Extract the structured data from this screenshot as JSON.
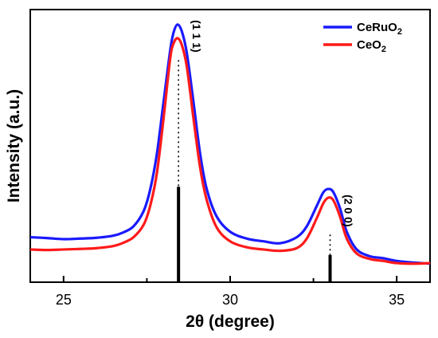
{
  "chart_data": {
    "type": "line",
    "xlabel": "2θ (degree)",
    "ylabel": "Intensity (a.u.)",
    "xlim": [
      24,
      36
    ],
    "ylim": [
      0,
      1
    ],
    "xticks": [
      25,
      30,
      35
    ],
    "xtick_labels": [
      "25",
      "30",
      "35"
    ],
    "legend_position": "top-right",
    "series": [
      {
        "name": "CeRuO2",
        "label_main": "CeRuO",
        "label_sub": "2",
        "color": "#1a1aff",
        "x": [
          24.0,
          24.5,
          25.0,
          25.5,
          26.0,
          26.5,
          26.8,
          27.1,
          27.4,
          27.6,
          27.8,
          28.0,
          28.2,
          28.3,
          28.42,
          28.55,
          28.7,
          28.9,
          29.1,
          29.3,
          29.6,
          30.0,
          30.5,
          31.0,
          31.5,
          32.0,
          32.3,
          32.6,
          32.8,
          32.95,
          33.1,
          33.3,
          33.5,
          33.8,
          34.2,
          34.6,
          35.0,
          35.5,
          36.0
        ],
        "y": [
          0.165,
          0.162,
          0.158,
          0.16,
          0.163,
          0.171,
          0.183,
          0.205,
          0.26,
          0.34,
          0.47,
          0.66,
          0.85,
          0.915,
          0.945,
          0.92,
          0.84,
          0.66,
          0.47,
          0.34,
          0.24,
          0.185,
          0.16,
          0.15,
          0.143,
          0.165,
          0.205,
          0.28,
          0.33,
          0.342,
          0.33,
          0.27,
          0.185,
          0.12,
          0.095,
          0.088,
          0.078,
          0.072,
          0.068
        ]
      },
      {
        "name": "CeO2",
        "label_main": "CeO",
        "label_sub": "2",
        "color": "#ff1a1a",
        "x": [
          24.0,
          24.5,
          25.0,
          25.5,
          26.0,
          26.5,
          26.8,
          27.1,
          27.4,
          27.6,
          27.8,
          28.0,
          28.2,
          28.3,
          28.42,
          28.55,
          28.7,
          28.9,
          29.1,
          29.3,
          29.6,
          30.0,
          30.5,
          31.0,
          31.5,
          32.0,
          32.3,
          32.6,
          32.8,
          32.95,
          33.1,
          33.3,
          33.5,
          33.8,
          34.2,
          34.6,
          35.0,
          35.5,
          36.0
        ],
        "y": [
          0.12,
          0.118,
          0.12,
          0.122,
          0.125,
          0.133,
          0.145,
          0.165,
          0.21,
          0.28,
          0.4,
          0.6,
          0.82,
          0.875,
          0.895,
          0.87,
          0.79,
          0.6,
          0.42,
          0.3,
          0.2,
          0.15,
          0.128,
          0.12,
          0.115,
          0.125,
          0.16,
          0.235,
          0.29,
          0.31,
          0.3,
          0.24,
          0.16,
          0.105,
          0.085,
          0.078,
          0.07,
          0.068,
          0.07
        ]
      }
    ],
    "reference_sticks": [
      {
        "x": 28.45,
        "y": 0.35
      },
      {
        "x": 33.0,
        "y": 0.1
      }
    ],
    "annotations": [
      {
        "text": "(1 1 1)",
        "x": 28.45,
        "y": 0.99,
        "line_to": 0.35
      },
      {
        "text": "(2 0 0)",
        "x": 33.0,
        "y": 0.35,
        "line_to": 0.1
      }
    ]
  }
}
